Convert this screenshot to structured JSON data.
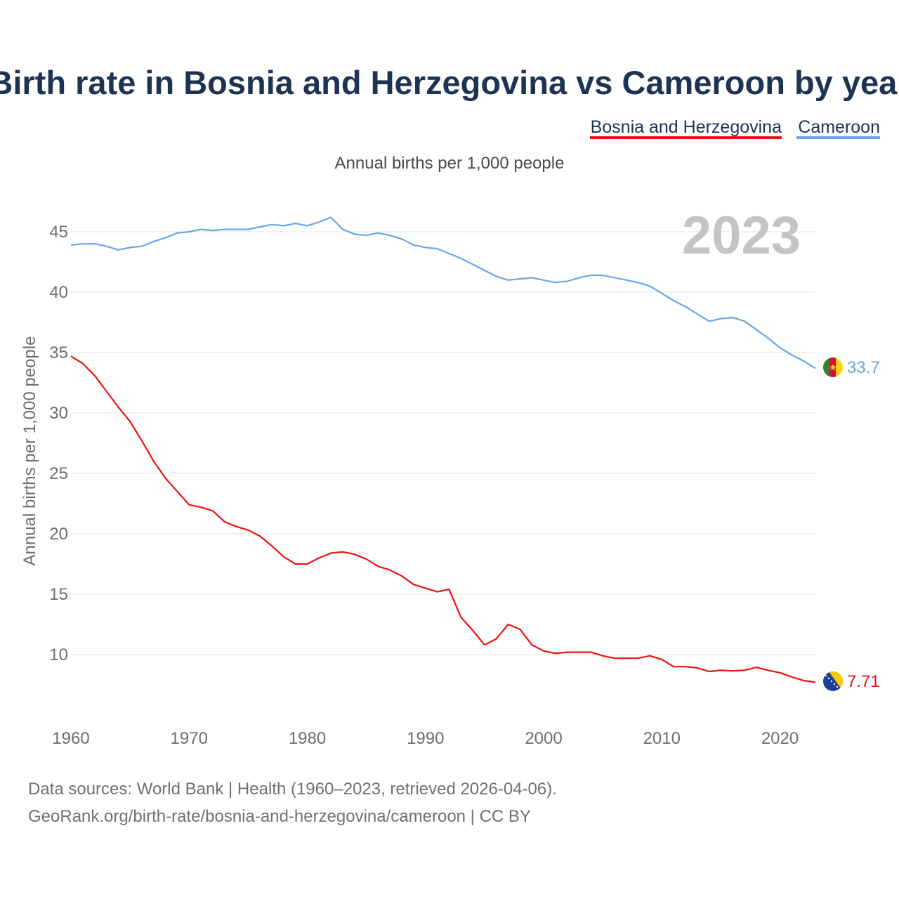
{
  "page_title": "Birth rate in Bosnia and Herzegovina vs Cameroon by year",
  "subtitle": "Annual births per 1,000 people",
  "year_watermark": "2023",
  "source_lines": [
    "Data sources: World Bank | Health (1960–2023, retrieved 2026-04-06).",
    "GeoRank.org/birth-rate/bosnia-and-herzegovina/cameroon | CC BY"
  ],
  "colors": {
    "bosnia": "#ee1111",
    "cameroon": "#66a7e8",
    "grid": "#e6e6e6",
    "title": "#1d3354"
  },
  "chart_data": {
    "type": "line",
    "title": "Birth rate in Bosnia and Herzegovina vs Cameroon by year",
    "subtitle": "Annual births per 1,000 people",
    "xlabel": "",
    "ylabel": "Annual births per 1,000 people",
    "xlim": [
      1960,
      2023
    ],
    "ylim": [
      5.5,
      47.5
    ],
    "x_ticks": [
      1960,
      1970,
      1980,
      1990,
      2000,
      2010,
      2020
    ],
    "y_ticks": [
      10,
      15,
      20,
      25,
      30,
      35,
      40,
      45
    ],
    "grid": true,
    "legend_position": "top-right",
    "x": [
      1960,
      1961,
      1962,
      1963,
      1964,
      1965,
      1966,
      1967,
      1968,
      1969,
      1970,
      1971,
      1972,
      1973,
      1974,
      1975,
      1976,
      1977,
      1978,
      1979,
      1980,
      1981,
      1982,
      1983,
      1984,
      1985,
      1986,
      1987,
      1988,
      1989,
      1990,
      1991,
      1992,
      1993,
      1994,
      1995,
      1996,
      1997,
      1998,
      1999,
      2000,
      2001,
      2002,
      2003,
      2004,
      2005,
      2006,
      2007,
      2008,
      2009,
      2010,
      2011,
      2012,
      2013,
      2014,
      2015,
      2016,
      2017,
      2018,
      2019,
      2020,
      2021,
      2022,
      2023
    ],
    "series": [
      {
        "name": "Bosnia and Herzegovina",
        "color": "#ee1111",
        "end_label": "7.71",
        "values": [
          34.7,
          34.1,
          33.1,
          31.8,
          30.5,
          29.3,
          27.7,
          26.0,
          24.6,
          23.5,
          22.4,
          22.2,
          21.9,
          21.0,
          20.6,
          20.3,
          19.8,
          19.0,
          18.1,
          17.5,
          17.5,
          18.0,
          18.4,
          18.5,
          18.3,
          17.9,
          17.3,
          17.0,
          16.5,
          15.8,
          15.5,
          15.2,
          15.4,
          13.1,
          12.0,
          10.8,
          11.3,
          12.5,
          12.1,
          10.8,
          10.3,
          10.1,
          10.2,
          10.2,
          10.2,
          9.9,
          9.7,
          9.7,
          9.7,
          9.9,
          9.6,
          9.0,
          9.0,
          8.9,
          8.6,
          8.7,
          8.65,
          8.7,
          8.95,
          8.7,
          8.5,
          8.15,
          7.85,
          7.71
        ]
      },
      {
        "name": "Cameroon",
        "color": "#66a7e8",
        "end_label": "33.7",
        "values": [
          43.9,
          44.0,
          44.0,
          43.8,
          43.5,
          43.7,
          43.8,
          44.2,
          44.5,
          44.9,
          45.0,
          45.2,
          45.1,
          45.2,
          45.2,
          45.2,
          45.4,
          45.6,
          45.5,
          45.7,
          45.5,
          45.8,
          46.2,
          45.2,
          44.8,
          44.7,
          44.9,
          44.7,
          44.4,
          43.9,
          43.7,
          43.6,
          43.2,
          42.8,
          42.3,
          41.8,
          41.3,
          41.0,
          41.1,
          41.2,
          41.0,
          40.8,
          40.9,
          41.2,
          41.4,
          41.4,
          41.2,
          41.0,
          40.8,
          40.5,
          39.9,
          39.3,
          38.8,
          38.2,
          37.6,
          37.8,
          37.9,
          37.6,
          36.9,
          36.2,
          35.4,
          34.8,
          34.3,
          33.7
        ]
      }
    ]
  }
}
